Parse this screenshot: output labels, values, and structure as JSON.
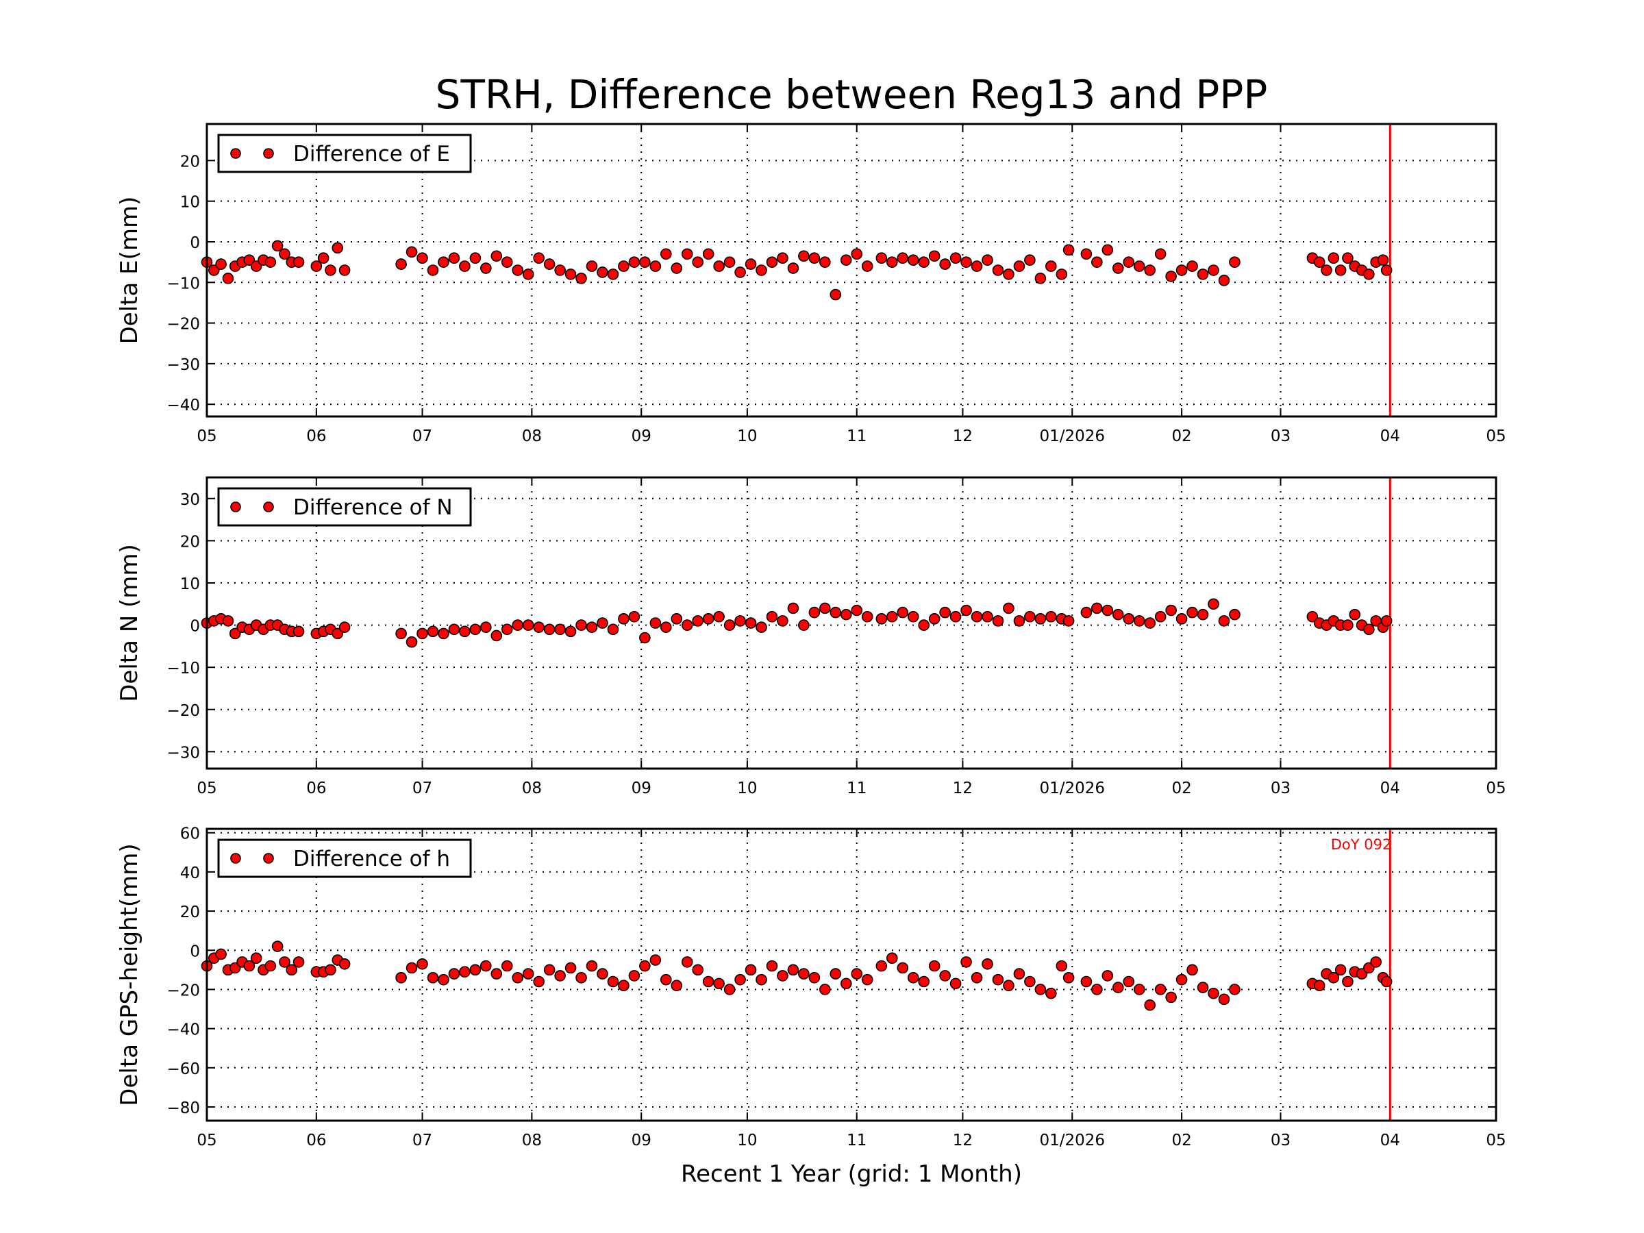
{
  "figure": {
    "title": "STRH, Difference between Reg13 and PPP",
    "xlabel": "Recent 1 Year (grid: 1 Month)",
    "marker_color": "#ff0000",
    "marker_edge": "#000000",
    "vline_color": "#ff0000"
  },
  "chart_data": [
    {
      "type": "scatter",
      "series_name": "Difference of E",
      "ylabel": "Delta E(mm)",
      "ylim": [
        -43,
        29
      ],
      "yticks": [
        20,
        10,
        0,
        -10,
        -20,
        -30,
        -40
      ],
      "ytick_labels": [
        "20",
        "10",
        "0",
        "−10",
        "−20",
        "−30",
        "−40"
      ],
      "xlim": [
        "2025-05-01",
        "2026-05-01"
      ],
      "xtick_labels": [
        "05",
        "06",
        "07",
        "08",
        "09",
        "10",
        "11",
        "12",
        "01/2026",
        "02",
        "03",
        "04",
        "05"
      ],
      "grid": true,
      "legend": "top-left",
      "vline": "2026-04-01",
      "annotation": "",
      "values": [
        -5,
        -7,
        -5.5,
        -9,
        -6,
        -5,
        -4.5,
        -6,
        -4.5,
        -5,
        -1,
        -3,
        -5,
        -5,
        -6,
        -4,
        -7,
        -1.5,
        -7,
        -5.5,
        -2.5,
        -4,
        -7,
        -5,
        -4,
        -6,
        -4,
        -6.5,
        -3.5,
        -5,
        -7,
        -8,
        -4,
        -5.5,
        -7,
        -8,
        -9,
        -6,
        -7.5,
        -8,
        -6,
        -5,
        -5,
        -6,
        -3,
        -6.5,
        -3,
        -5,
        -3,
        -6,
        -5,
        -7.5,
        -5.5,
        -7,
        -5,
        -4,
        -6.5,
        -3.5,
        -4,
        -5,
        -13,
        -4.5,
        -3,
        -6,
        -4,
        -5,
        -4,
        -4.5,
        -5,
        -3.5,
        -5.5,
        -4,
        -5,
        -6,
        -4.5,
        -7,
        -8,
        -6,
        -4.5,
        -9,
        -6,
        -8,
        -2,
        -3,
        -5,
        -2,
        -6.5,
        -5,
        -6,
        -7,
        -3,
        -8.5,
        -7,
        -6,
        -8,
        -7,
        -9.5,
        -5,
        -4,
        -5,
        -7,
        -4,
        -7,
        -4,
        -6,
        -7,
        -8,
        -5,
        -4.5,
        -7
      ]
    },
    {
      "type": "scatter",
      "series_name": "Difference of N",
      "ylabel": "Delta N (mm)",
      "ylim": [
        -34,
        35
      ],
      "yticks": [
        30,
        20,
        10,
        0,
        -10,
        -20,
        -30
      ],
      "ytick_labels": [
        "30",
        "20",
        "10",
        "0",
        "−10",
        "−20",
        "−30"
      ],
      "xlim": [
        "2025-05-01",
        "2026-05-01"
      ],
      "xtick_labels": [
        "05",
        "06",
        "07",
        "08",
        "09",
        "10",
        "11",
        "12",
        "01/2026",
        "02",
        "03",
        "04",
        "05"
      ],
      "grid": true,
      "legend": "top-left",
      "vline": "2026-04-01",
      "annotation": "",
      "values": [
        0.5,
        1,
        1.5,
        1,
        -2,
        -0.5,
        -1,
        0,
        -1,
        0,
        0,
        -1,
        -1.5,
        -1.5,
        -2,
        -1.5,
        -1,
        -2,
        -0.5,
        -2,
        -4,
        -2,
        -1.5,
        -2,
        -1,
        -1.5,
        -1,
        -0.5,
        -2.5,
        -1,
        0,
        0,
        -0.5,
        -1,
        -1,
        -1.5,
        0,
        -0.5,
        0.5,
        -1,
        1.5,
        2,
        -3,
        0.5,
        -0.5,
        1.5,
        0,
        1,
        1.5,
        2,
        0,
        1,
        0.5,
        -0.5,
        2,
        1,
        4,
        0,
        3,
        4,
        3,
        2.5,
        3.5,
        2,
        1.5,
        2,
        3,
        2,
        0,
        1.5,
        3,
        2,
        3.5,
        2,
        2,
        1,
        4,
        1,
        2,
        1.5,
        2,
        1.5,
        1,
        3,
        4,
        3.5,
        2.5,
        1.5,
        1,
        0.5,
        2,
        3.5,
        1.5,
        3,
        2.5,
        5,
        1,
        2.5,
        2,
        0.5,
        0,
        1,
        0,
        0,
        2.5,
        0,
        -1,
        1,
        -0.5,
        1
      ]
    },
    {
      "type": "scatter",
      "series_name": "Difference of h",
      "ylabel": "Delta GPS-height(mm)",
      "ylim": [
        -87,
        62
      ],
      "yticks": [
        60,
        40,
        20,
        0,
        -20,
        -40,
        -60,
        -80
      ],
      "ytick_labels": [
        "60",
        "40",
        "20",
        "0",
        "−20",
        "−40",
        "−60",
        "−80"
      ],
      "xlim": [
        "2025-05-01",
        "2026-05-01"
      ],
      "xtick_labels": [
        "05",
        "06",
        "07",
        "08",
        "09",
        "10",
        "11",
        "12",
        "01/2026",
        "02",
        "03",
        "04",
        "05"
      ],
      "grid": true,
      "legend": "top-left",
      "vline": "2026-04-01",
      "annotation": "DoY 092",
      "values": [
        -8,
        -4,
        -2,
        -10,
        -9,
        -6,
        -8,
        -4,
        -10,
        -8,
        2,
        -6,
        -10,
        -6,
        -11,
        -11,
        -10,
        -5,
        -7,
        -14,
        -9,
        -7,
        -14,
        -15,
        -12,
        -11,
        -10,
        -8,
        -12,
        -8,
        -14,
        -12,
        -16,
        -10,
        -13,
        -9,
        -14,
        -8,
        -12,
        -16,
        -18,
        -13,
        -8,
        -5,
        -15,
        -18,
        -6,
        -10,
        -16,
        -17,
        -20,
        -15,
        -10,
        -15,
        -8,
        -13,
        -10,
        -12,
        -14,
        -20,
        -12,
        -17,
        -12,
        -15,
        -8,
        -4,
        -9,
        -14,
        -16,
        -8,
        -13,
        -17,
        -6,
        -14,
        -7,
        -15,
        -18,
        -12,
        -16,
        -20,
        -22,
        -8,
        -14,
        -16,
        -20,
        -13,
        -19,
        -16,
        -20,
        -28,
        -20,
        -24,
        -15,
        -10,
        -19,
        -22,
        -25,
        -20,
        -17,
        -18,
        -12,
        -14,
        -10,
        -16,
        -11,
        -12,
        -9,
        -6,
        -14,
        -16
      ]
    }
  ],
  "dates": [
    "2025-05-01",
    "2025-05-03",
    "2025-05-05",
    "2025-05-07",
    "2025-05-09",
    "2025-05-11",
    "2025-05-13",
    "2025-05-15",
    "2025-05-17",
    "2025-05-19",
    "2025-05-21",
    "2025-05-23",
    "2025-05-25",
    "2025-05-27",
    "2025-06-01",
    "2025-06-03",
    "2025-06-05",
    "2025-06-07",
    "2025-06-09",
    "2025-06-25",
    "2025-06-28",
    "2025-07-01",
    "2025-07-04",
    "2025-07-07",
    "2025-07-10",
    "2025-07-13",
    "2025-07-16",
    "2025-07-19",
    "2025-07-22",
    "2025-07-25",
    "2025-07-28",
    "2025-07-31",
    "2025-08-03",
    "2025-08-06",
    "2025-08-09",
    "2025-08-12",
    "2025-08-15",
    "2025-08-18",
    "2025-08-21",
    "2025-08-24",
    "2025-08-27",
    "2025-08-30",
    "2025-09-02",
    "2025-09-05",
    "2025-09-08",
    "2025-09-11",
    "2025-09-14",
    "2025-09-17",
    "2025-09-20",
    "2025-09-23",
    "2025-09-26",
    "2025-09-29",
    "2025-10-02",
    "2025-10-05",
    "2025-10-08",
    "2025-10-11",
    "2025-10-14",
    "2025-10-17",
    "2025-10-20",
    "2025-10-23",
    "2025-10-26",
    "2025-10-29",
    "2025-11-01",
    "2025-11-04",
    "2025-11-08",
    "2025-11-11",
    "2025-11-14",
    "2025-11-17",
    "2025-11-20",
    "2025-11-23",
    "2025-11-26",
    "2025-11-29",
    "2025-12-02",
    "2025-12-05",
    "2025-12-08",
    "2025-12-11",
    "2025-12-14",
    "2025-12-17",
    "2025-12-20",
    "2025-12-23",
    "2025-12-26",
    "2025-12-29",
    "2025-12-31",
    "2026-01-05",
    "2026-01-08",
    "2026-01-11",
    "2026-01-14",
    "2026-01-17",
    "2026-01-20",
    "2026-01-23",
    "2026-01-26",
    "2026-01-29",
    "2026-02-01",
    "2026-02-04",
    "2026-02-07",
    "2026-02-10",
    "2026-02-13",
    "2026-02-16",
    "2026-03-10",
    "2026-03-12",
    "2026-03-14",
    "2026-03-16",
    "2026-03-18",
    "2026-03-20",
    "2026-03-22",
    "2026-03-24",
    "2026-03-26",
    "2026-03-28",
    "2026-03-30",
    "2026-03-31"
  ]
}
